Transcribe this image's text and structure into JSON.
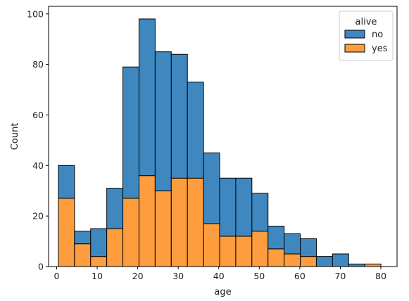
{
  "chart_data": {
    "type": "bar",
    "stacked": true,
    "xlabel": "age",
    "ylabel": "Count",
    "xlim": [
      -2,
      84
    ],
    "ylim": [
      0,
      103
    ],
    "xticks": [
      0,
      10,
      20,
      30,
      40,
      50,
      60,
      70,
      80
    ],
    "yticks": [
      0,
      20,
      40,
      60,
      80,
      100
    ],
    "bin_edges": [
      0.42,
      4.4,
      8.38,
      12.36,
      16.34,
      20.32,
      24.3,
      28.28,
      32.26,
      36.24,
      40.22,
      44.2,
      48.18,
      52.16,
      56.14,
      60.12,
      64.1,
      68.08,
      72.06,
      76.04,
      80.02
    ],
    "legend": {
      "title": "alive",
      "placement": "top-right"
    },
    "series": [
      {
        "name": "no",
        "color": "#3f88bf",
        "values": [
          13,
          5,
          11,
          16,
          52,
          62,
          55,
          49,
          38,
          28,
          23,
          23,
          15,
          9,
          8,
          7,
          4,
          5,
          1,
          0
        ]
      },
      {
        "name": "yes",
        "color": "#fd9d3e",
        "values": [
          27,
          9,
          4,
          15,
          27,
          36,
          30,
          35,
          35,
          17,
          12,
          12,
          14,
          7,
          5,
          4,
          0,
          0,
          0,
          1
        ]
      }
    ],
    "grid": false
  }
}
